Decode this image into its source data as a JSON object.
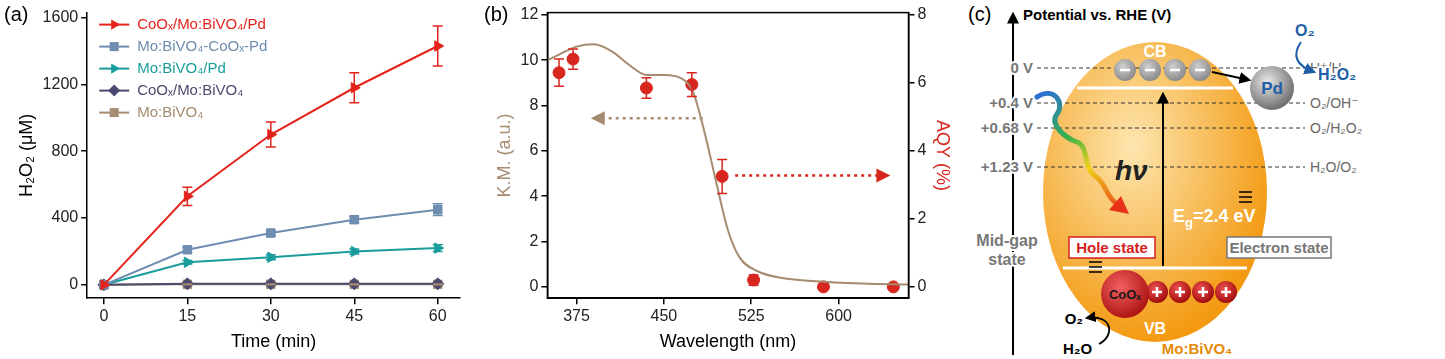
{
  "chart_data": [
    {
      "type": "line",
      "panel": "(a)",
      "x_label": "Time (min)",
      "y_label": "H₂O₂ (μM)",
      "x": [
        0,
        15,
        30,
        45,
        60
      ],
      "xlim": [
        -3,
        64
      ],
      "xticks": [
        0,
        15,
        30,
        45,
        60
      ],
      "ylim": [
        -80,
        1630
      ],
      "yticks": [
        0,
        400,
        800,
        1200,
        1600
      ],
      "grid": false,
      "legend": "upper left",
      "series": [
        {
          "name": "CoOₓ/Mo:BiVO₄/Pd",
          "color": "#e3241c",
          "marker": "triangle-right",
          "line_style": "solid",
          "values": [
            0,
            530,
            900,
            1180,
            1430
          ],
          "errors": [
            0,
            55,
            75,
            90,
            120
          ]
        },
        {
          "name": "Mo:BiVO₄-CoOₓ-Pd",
          "color": "#6e8db0",
          "marker": "square",
          "line_style": "solid",
          "values": [
            0,
            210,
            310,
            390,
            450
          ],
          "errors": [
            0,
            15,
            15,
            20,
            35
          ]
        },
        {
          "name": "Mo:BiVO₄/Pd",
          "color": "#1a9c9c",
          "marker": "triangle-right",
          "line_style": "solid",
          "values": [
            0,
            135,
            165,
            200,
            220
          ],
          "errors": [
            0,
            10,
            15,
            15,
            20
          ]
        },
        {
          "name": "CoOₓ/Mo:BiVO₄",
          "color": "#4b4a6e",
          "marker": "diamond",
          "line_style": "solid",
          "values": [
            0,
            6,
            6,
            6,
            6
          ],
          "errors": [
            0,
            3,
            3,
            3,
            3
          ]
        },
        {
          "name": "Mo:BiVO₄",
          "color": "#a58b6f",
          "marker": "square",
          "line_style": "solid",
          "values": [
            0,
            3,
            3,
            3,
            3
          ],
          "errors": [
            0,
            2,
            2,
            2,
            2
          ]
        }
      ]
    },
    {
      "type": "line",
      "panel": "(b)",
      "x_label": "Wavelength (nm)",
      "y_label": "K.M. (a.u.)",
      "y2_label": "AQY (%)",
      "xlim": [
        350,
        660
      ],
      "xticks": [
        375,
        450,
        525,
        600
      ],
      "ylim": [
        -0.5,
        12.1
      ],
      "yticks": [
        0,
        2,
        4,
        6,
        8,
        10,
        12
      ],
      "y2lim": [
        -0.333,
        8.067
      ],
      "y2ticks": [
        0,
        2,
        4,
        6,
        8
      ],
      "grid": false,
      "series": [
        {
          "type": "line",
          "color": "#a58b6f",
          "marker": "none",
          "line_style": "solid",
          "x": [
            350,
            360,
            375,
            390,
            405,
            420,
            435,
            450,
            465,
            475,
            485,
            495,
            505,
            515,
            530,
            550,
            580,
            620,
            660
          ],
          "values": [
            10.0,
            10.25,
            10.6,
            10.7,
            10.4,
            9.8,
            9.35,
            9.35,
            9.2,
            8.6,
            6.8,
            4.6,
            2.5,
            1.3,
            0.7,
            0.4,
            0.25,
            0.15,
            0.1
          ]
        },
        {
          "type": "scatter",
          "axis": "y2",
          "color": "#d7261e",
          "marker": "circle",
          "line_style": "none",
          "x": [
            360,
            372,
            435,
            474,
            500,
            527,
            587,
            647
          ],
          "values": [
            6.3,
            6.7,
            5.85,
            5.95,
            3.25,
            0.2,
            0,
            0
          ],
          "errors": [
            0.4,
            0.3,
            0.3,
            0.35,
            0.5,
            0.15,
            0,
            0
          ]
        }
      ]
    }
  ],
  "diagram": {
    "panel": "(c)",
    "axis_label": "Potential vs. RHE (V)",
    "levels": [
      {
        "potential": "0 V",
        "couple": "H⁺/H₂"
      },
      {
        "potential": "+0.4 V",
        "couple": "O₂/OH⁻"
      },
      {
        "potential": "+0.68 V",
        "couple": "O₂/H₂O₂"
      },
      {
        "potential": "+1.23 V",
        "couple": "H₂O/O₂"
      }
    ],
    "conduction_band": "CB",
    "valence_band": "VB",
    "semiconductor": "Mo:BiVO₄",
    "reduction_cocatalyst": "Pd",
    "reduction": {
      "reactant": "O₂",
      "product": "H₂O₂"
    },
    "photon": "hν",
    "band_gap": {
      "text": "E",
      "subscript": "g",
      "after": "=2.4 eV"
    },
    "hole_state": "Hole state",
    "electron_state": "Electron state",
    "mid_gap_state": [
      "Mid-gap",
      "state"
    ],
    "oxidation_cocatalyst": "CoOₓ",
    "oxidation": {
      "reactant": "H₂O",
      "product": "O₂"
    }
  }
}
